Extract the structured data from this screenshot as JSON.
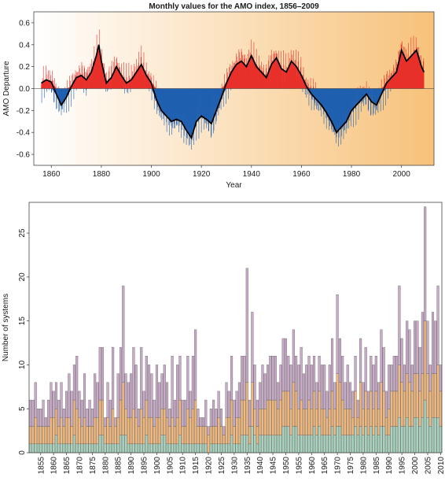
{
  "chart_data": [
    {
      "type": "area",
      "title": "Monthly values for the AMO index, 1856–2009",
      "xlabel": "Year",
      "ylabel": "AMO Departure",
      "xlim": [
        1853,
        2013
      ],
      "ylim": [
        -0.7,
        0.7
      ],
      "xticks": [
        1860,
        1880,
        1900,
        1920,
        1940,
        1960,
        1980,
        2000
      ],
      "yticks": [
        -0.6,
        -0.4,
        -0.2,
        0.0,
        0.2,
        0.4,
        0.6
      ],
      "ytick_labels": [
        "-0.6",
        "-0.4",
        "-0.2",
        "0.0",
        "0.2",
        "0.4",
        "0.6"
      ],
      "colors": {
        "positive": "#e8302a",
        "negative": "#1f5fb0",
        "smoothed": "#000000",
        "bg_start": "#ffffff",
        "bg_end": "#f7c27a"
      },
      "smoothed": {
        "x": [
          1856,
          1858,
          1860,
          1862,
          1864,
          1866,
          1868,
          1870,
          1872,
          1874,
          1876,
          1878,
          1879,
          1880,
          1882,
          1884,
          1886,
          1888,
          1890,
          1892,
          1894,
          1896,
          1898,
          1900,
          1902,
          1904,
          1906,
          1908,
          1910,
          1912,
          1914,
          1916,
          1918,
          1920,
          1922,
          1924,
          1926,
          1928,
          1930,
          1932,
          1934,
          1936,
          1938,
          1940,
          1942,
          1944,
          1946,
          1948,
          1950,
          1952,
          1954,
          1956,
          1958,
          1960,
          1962,
          1964,
          1966,
          1968,
          1970,
          1972,
          1974,
          1976,
          1978,
          1980,
          1982,
          1984,
          1986,
          1988,
          1990,
          1992,
          1994,
          1996,
          1998,
          2000,
          2002,
          2004,
          2006,
          2008,
          2009
        ],
        "y": [
          0.05,
          0.08,
          0.06,
          -0.05,
          -0.15,
          -0.08,
          0.02,
          0.1,
          0.12,
          0.08,
          0.15,
          0.3,
          0.4,
          0.25,
          0.05,
          0.1,
          0.2,
          0.12,
          0.05,
          0.08,
          0.15,
          0.22,
          0.12,
          0.05,
          -0.1,
          -0.2,
          -0.25,
          -0.3,
          -0.28,
          -0.3,
          -0.38,
          -0.45,
          -0.3,
          -0.25,
          -0.28,
          -0.32,
          -0.2,
          -0.08,
          0.05,
          0.15,
          0.22,
          0.25,
          0.2,
          0.3,
          0.2,
          0.15,
          0.1,
          0.22,
          0.28,
          0.18,
          0.15,
          0.25,
          0.2,
          0.12,
          0.02,
          -0.05,
          -0.1,
          -0.15,
          -0.22,
          -0.3,
          -0.4,
          -0.35,
          -0.3,
          -0.2,
          -0.15,
          -0.1,
          -0.05,
          -0.12,
          -0.15,
          -0.05,
          0.05,
          0.1,
          0.15,
          0.35,
          0.25,
          0.3,
          0.35,
          0.2,
          0.15
        ]
      }
    },
    {
      "type": "bar",
      "title": "",
      "xlabel": "",
      "ylabel": "Number of systems",
      "ylim": [
        0,
        28.5
      ],
      "yticks": [
        0,
        5,
        10,
        15,
        20,
        25
      ],
      "xlim": [
        1851,
        2010
      ],
      "xticks": [
        1855,
        1860,
        1865,
        1870,
        1875,
        1880,
        1885,
        1890,
        1895,
        1900,
        1905,
        1910,
        1915,
        1920,
        1925,
        1930,
        1935,
        1940,
        1945,
        1950,
        1955,
        1960,
        1965,
        1970,
        1975,
        1980,
        1985,
        1990,
        1995,
        2000,
        2005,
        2010
      ],
      "years": [
        1851,
        2010
      ],
      "series": [
        {
          "name": "",
          "color": "#a8d5bf"
        },
        {
          "name": "",
          "color": "#f5b878"
        },
        {
          "name": "",
          "color": "#c9aac8"
        }
      ],
      "totals": [
        6,
        6,
        8,
        5,
        5,
        6,
        4,
        6,
        8,
        7,
        8,
        6,
        8,
        5,
        7,
        9,
        7,
        10,
        11,
        7,
        6,
        9,
        5,
        6,
        5,
        9,
        8,
        12,
        12,
        4,
        8,
        6,
        12,
        4,
        9,
        12,
        19,
        9,
        8,
        9,
        12,
        10,
        5,
        12,
        7,
        11,
        10,
        9,
        6,
        10,
        8,
        9,
        10,
        8,
        5,
        11,
        6,
        10,
        11,
        6,
        6,
        11,
        7,
        11,
        14,
        5,
        4,
        4,
        6,
        3,
        5,
        6,
        5,
        7,
        5,
        3,
        8,
        7,
        11,
        6,
        7,
        8,
        11,
        11,
        21,
        6,
        16,
        10,
        6,
        8,
        10,
        9,
        10,
        11,
        11,
        11,
        8,
        10,
        13,
        13,
        11,
        10,
        14,
        11,
        10,
        12,
        9,
        10,
        11,
        10,
        11,
        8,
        11,
        10,
        10,
        7,
        10,
        13,
        8,
        18,
        13,
        11,
        8,
        10,
        8,
        7,
        11,
        6,
        13,
        8,
        12,
        7,
        11,
        10,
        11,
        8,
        14,
        12,
        7,
        10,
        10,
        11,
        11,
        19,
        13,
        10,
        15,
        14,
        10,
        15,
        15,
        12,
        16,
        28,
        15,
        10,
        16,
        15,
        19,
        10
      ],
      "first": [
        1,
        1,
        1,
        1,
        1,
        1,
        1,
        1,
        1,
        1,
        2,
        1,
        1,
        1,
        1,
        1,
        1,
        2,
        1,
        1,
        1,
        1,
        1,
        1,
        1,
        1,
        1,
        2,
        2,
        1,
        1,
        1,
        1,
        1,
        1,
        2,
        2,
        2,
        1,
        1,
        1,
        1,
        1,
        1,
        1,
        2,
        1,
        1,
        1,
        1,
        1,
        2,
        2,
        1,
        1,
        1,
        1,
        1,
        2,
        1,
        1,
        1,
        1,
        1,
        1,
        1,
        1,
        1,
        1,
        0,
        1,
        1,
        1,
        1,
        1,
        1,
        1,
        1,
        2,
        1,
        1,
        1,
        2,
        2,
        2,
        1,
        3,
        2,
        1,
        2,
        2,
        2,
        2,
        2,
        2,
        2,
        2,
        2,
        3,
        3,
        3,
        2,
        3,
        3,
        2,
        2,
        2,
        2,
        2,
        2,
        3,
        2,
        3,
        2,
        2,
        2,
        2,
        3,
        2,
        3,
        3,
        2,
        2,
        2,
        2,
        2,
        3,
        2,
        3,
        2,
        3,
        2,
        3,
        2,
        3,
        2,
        3,
        3,
        2,
        2,
        3,
        3,
        3,
        4,
        3,
        3,
        4,
        3,
        3,
        4,
        4,
        3,
        4,
        6,
        4,
        3,
        4,
        4,
        4,
        3
      ],
      "second": [
        2,
        2,
        3,
        2,
        2,
        2,
        2,
        2,
        3,
        3,
        3,
        2,
        3,
        2,
        3,
        3,
        2,
        4,
        4,
        3,
        2,
        3,
        2,
        2,
        2,
        3,
        3,
        4,
        4,
        2,
        3,
        2,
        4,
        2,
        3,
        4,
        6,
        3,
        3,
        3,
        4,
        3,
        2,
        4,
        3,
        4,
        3,
        3,
        2,
        3,
        3,
        3,
        3,
        3,
        2,
        3,
        2,
        3,
        4,
        2,
        2,
        4,
        3,
        4,
        5,
        2,
        2,
        2,
        2,
        2,
        2,
        2,
        2,
        3,
        2,
        1,
        3,
        3,
        4,
        2,
        3,
        3,
        4,
        4,
        6,
        2,
        5,
        3,
        2,
        3,
        3,
        3,
        4,
        4,
        4,
        4,
        3,
        4,
        4,
        4,
        4,
        3,
        5,
        4,
        3,
        4,
        3,
        3,
        4,
        3,
        4,
        3,
        4,
        3,
        3,
        2,
        3,
        4,
        3,
        6,
        5,
        4,
        3,
        3,
        3,
        2,
        4,
        2,
        5,
        3,
        4,
        3,
        4,
        3,
        4,
        3,
        5,
        4,
        2,
        3,
        4,
        4,
        4,
        6,
        5,
        4,
        5,
        5,
        4,
        5,
        5,
        4,
        5,
        9,
        5,
        4,
        5,
        5,
        6,
        4
      ]
    }
  ]
}
